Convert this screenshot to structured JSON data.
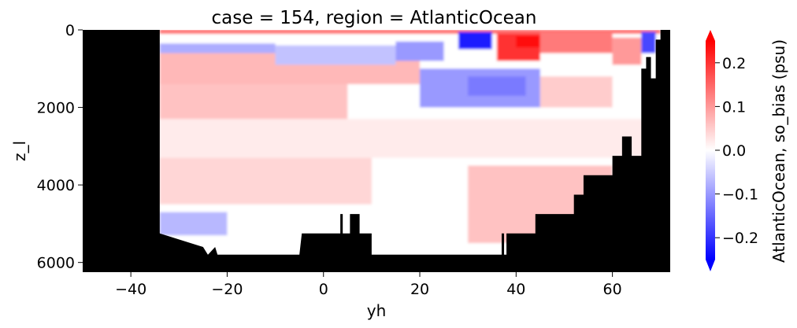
{
  "chart_data": {
    "type": "heatmap",
    "title": "case = 154, region = AtlanticOcean",
    "xlabel": "yh",
    "ylabel": "z_l",
    "xlim": [
      -50,
      72
    ],
    "ylim": [
      6250,
      0
    ],
    "y_inverted": true,
    "x_ticks": [
      -40,
      -20,
      0,
      20,
      40,
      60
    ],
    "x_tick_labels": [
      "−40",
      "−20",
      "0",
      "20",
      "40",
      "60"
    ],
    "y_ticks": [
      0,
      2000,
      4000,
      6000
    ],
    "y_tick_labels": [
      "0",
      "2000",
      "4000",
      "6000"
    ],
    "colorbar": {
      "label": "AtlanticOcean, so_bias (psu)",
      "colormap": "bwr",
      "vmin": -0.25,
      "vmax": 0.25,
      "extend": "both",
      "ticks": [
        -0.2,
        -0.1,
        0.0,
        0.1,
        0.2
      ],
      "tick_labels": [
        "−0.2",
        "−0.1",
        "0.0",
        "0.1",
        "0.2"
      ]
    },
    "mask_color": "#000000",
    "data_extent_lat": [
      -34,
      70
    ],
    "bathymetry_max_depth": [
      [
        -50,
        0
      ],
      [
        -34,
        5250
      ],
      [
        -25,
        5600
      ],
      [
        -24,
        5800
      ],
      [
        -22.5,
        5600
      ],
      [
        -22,
        5800
      ],
      [
        -5,
        5800
      ],
      [
        -4.5,
        5250
      ],
      [
        3.5,
        5250
      ],
      [
        3.5,
        4750
      ],
      [
        4,
        4750
      ],
      [
        4,
        5250
      ],
      [
        5.5,
        5250
      ],
      [
        5.5,
        4750
      ],
      [
        7.5,
        4750
      ],
      [
        7.5,
        5250
      ],
      [
        10,
        5250
      ],
      [
        10,
        5800
      ],
      [
        37,
        5800
      ],
      [
        37,
        5250
      ],
      [
        37.5,
        5250
      ],
      [
        37.5,
        5800
      ],
      [
        38,
        5800
      ],
      [
        38,
        5250
      ],
      [
        44,
        5250
      ],
      [
        44,
        4750
      ],
      [
        52,
        4750
      ],
      [
        52,
        4250
      ],
      [
        54,
        4250
      ],
      [
        54,
        3750
      ],
      [
        60,
        3750
      ],
      [
        60,
        3250
      ],
      [
        62,
        3250
      ],
      [
        62,
        2750
      ],
      [
        64,
        2750
      ],
      [
        64,
        3250
      ],
      [
        66,
        3250
      ],
      [
        66,
        2750
      ],
      [
        66,
        1000
      ],
      [
        67,
        1000
      ],
      [
        67,
        700
      ],
      [
        68,
        700
      ],
      [
        68,
        1250
      ],
      [
        69,
        1250
      ],
      [
        69,
        250
      ],
      [
        70,
        250
      ],
      [
        70,
        0
      ]
    ],
    "bias_regions": [
      {
        "lat": [
          -34,
          70
        ],
        "depth": [
          0,
          6000
        ],
        "value": 0.0
      },
      {
        "lat": [
          -34,
          70
        ],
        "depth": [
          0,
          100
        ],
        "value": 0.15
      },
      {
        "lat": [
          -34,
          -10
        ],
        "depth": [
          350,
          700
        ],
        "value": -0.08
      },
      {
        "lat": [
          -34,
          20
        ],
        "depth": [
          600,
          1400
        ],
        "value": 0.07
      },
      {
        "lat": [
          -10,
          15
        ],
        "depth": [
          400,
          900
        ],
        "value": -0.06
      },
      {
        "lat": [
          15,
          25
        ],
        "depth": [
          300,
          800
        ],
        "value": -0.1
      },
      {
        "lat": [
          28,
          35
        ],
        "depth": [
          50,
          500
        ],
        "value": -0.22
      },
      {
        "lat": [
          36,
          45
        ],
        "depth": [
          100,
          800
        ],
        "value": 0.2
      },
      {
        "lat": [
          40,
          45
        ],
        "depth": [
          150,
          450
        ],
        "value": 0.24
      },
      {
        "lat": [
          45,
          60
        ],
        "depth": [
          50,
          600
        ],
        "value": 0.13
      },
      {
        "lat": [
          60,
          66
        ],
        "depth": [
          200,
          900
        ],
        "value": 0.1
      },
      {
        "lat": [
          66,
          69
        ],
        "depth": [
          50,
          600
        ],
        "value": -0.18
      },
      {
        "lat": [
          20,
          45
        ],
        "depth": [
          1000,
          2000
        ],
        "value": -0.1
      },
      {
        "lat": [
          30,
          42
        ],
        "depth": [
          1200,
          1700
        ],
        "value": -0.13
      },
      {
        "lat": [
          45,
          60
        ],
        "depth": [
          1200,
          2000
        ],
        "value": 0.05
      },
      {
        "lat": [
          -34,
          5
        ],
        "depth": [
          1400,
          2300
        ],
        "value": 0.06
      },
      {
        "lat": [
          -34,
          70
        ],
        "depth": [
          2300,
          3300
        ],
        "value": 0.02
      },
      {
        "lat": [
          -34,
          10
        ],
        "depth": [
          3300,
          4500
        ],
        "value": 0.04
      },
      {
        "lat": [
          30,
          60
        ],
        "depth": [
          3500,
          5500
        ],
        "value": 0.06
      },
      {
        "lat": [
          -34,
          -20
        ],
        "depth": [
          4700,
          5300
        ],
        "value": -0.07
      }
    ]
  }
}
